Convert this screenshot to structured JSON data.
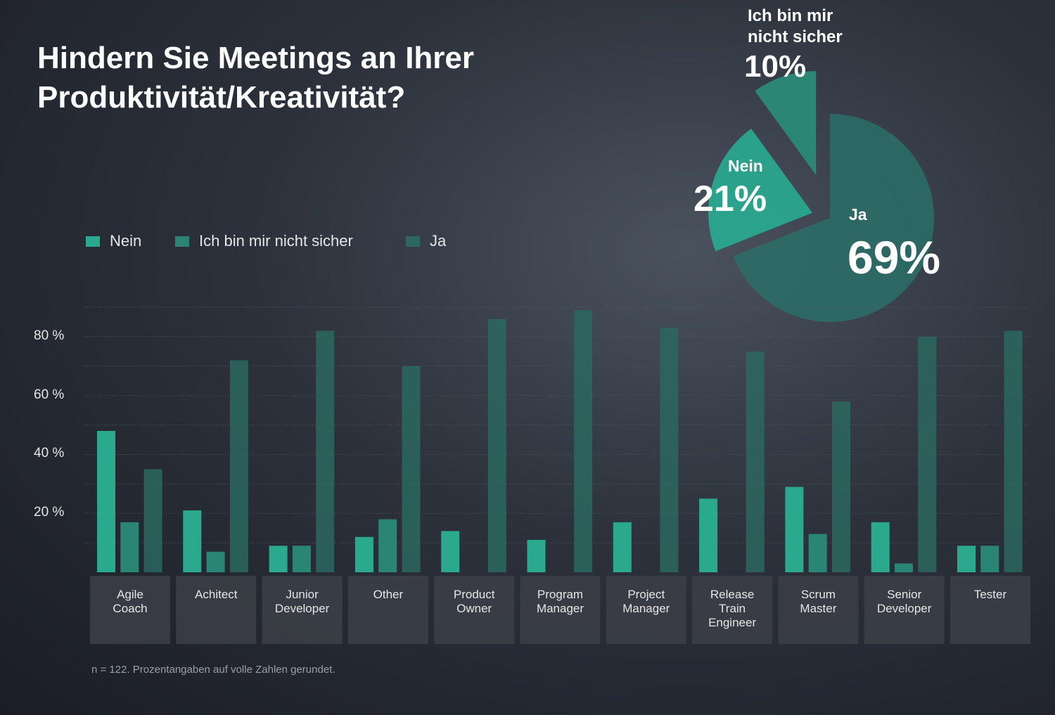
{
  "chart_data": [
    {
      "type": "pie",
      "categories": [
        "Ja",
        "Nein",
        "Ich bin mir\nnicht sicher"
      ],
      "values": [
        69,
        21,
        10
      ],
      "value_labels": [
        "69%",
        "21%",
        "10%"
      ],
      "colors": [
        "#2c6f68",
        "#2aa68e",
        "#2a8a78"
      ]
    },
    {
      "type": "bar",
      "title": "Hindern Sie Meetings an Ihrer\nProduktivität/Kreativität?",
      "note": "n = 122. Prozentangaben auf volle Zahlen gerundet.",
      "categories": [
        "Agile\nCoach",
        "Achitect",
        "Junior\nDeveloper",
        "Other",
        "Product\nOwner",
        "Program\nManager",
        "Project\nManager",
        "Release\nTrain\nEngineer",
        "Scrum\nMaster",
        "Senior\nDeveloper",
        "Tester"
      ],
      "series": [
        {
          "name": "Nein",
          "color": "#2aa98f",
          "values": [
            48,
            21,
            9,
            12,
            14,
            11,
            17,
            25,
            29,
            17,
            9
          ]
        },
        {
          "name": "Ich bin mir nicht sicher",
          "color": "#2b8574",
          "values": [
            17,
            7,
            9,
            18,
            0,
            0,
            0,
            0,
            13,
            3,
            9
          ]
        },
        {
          "name": "Ja",
          "color": "#2c6760",
          "values": [
            35,
            72,
            82,
            70,
            86,
            89,
            83,
            75,
            58,
            80,
            82
          ]
        }
      ],
      "ylim": [
        0,
        90
      ],
      "yticks": [
        {
          "value": 20,
          "label": "20 %"
        },
        {
          "value": 40,
          "label": "40 %"
        },
        {
          "value": 60,
          "label": "60 %"
        },
        {
          "value": 80,
          "label": "80 %"
        }
      ],
      "minor_yticks": [
        10,
        30,
        50,
        70,
        90
      ],
      "grid": true,
      "legend": "top-left"
    }
  ]
}
